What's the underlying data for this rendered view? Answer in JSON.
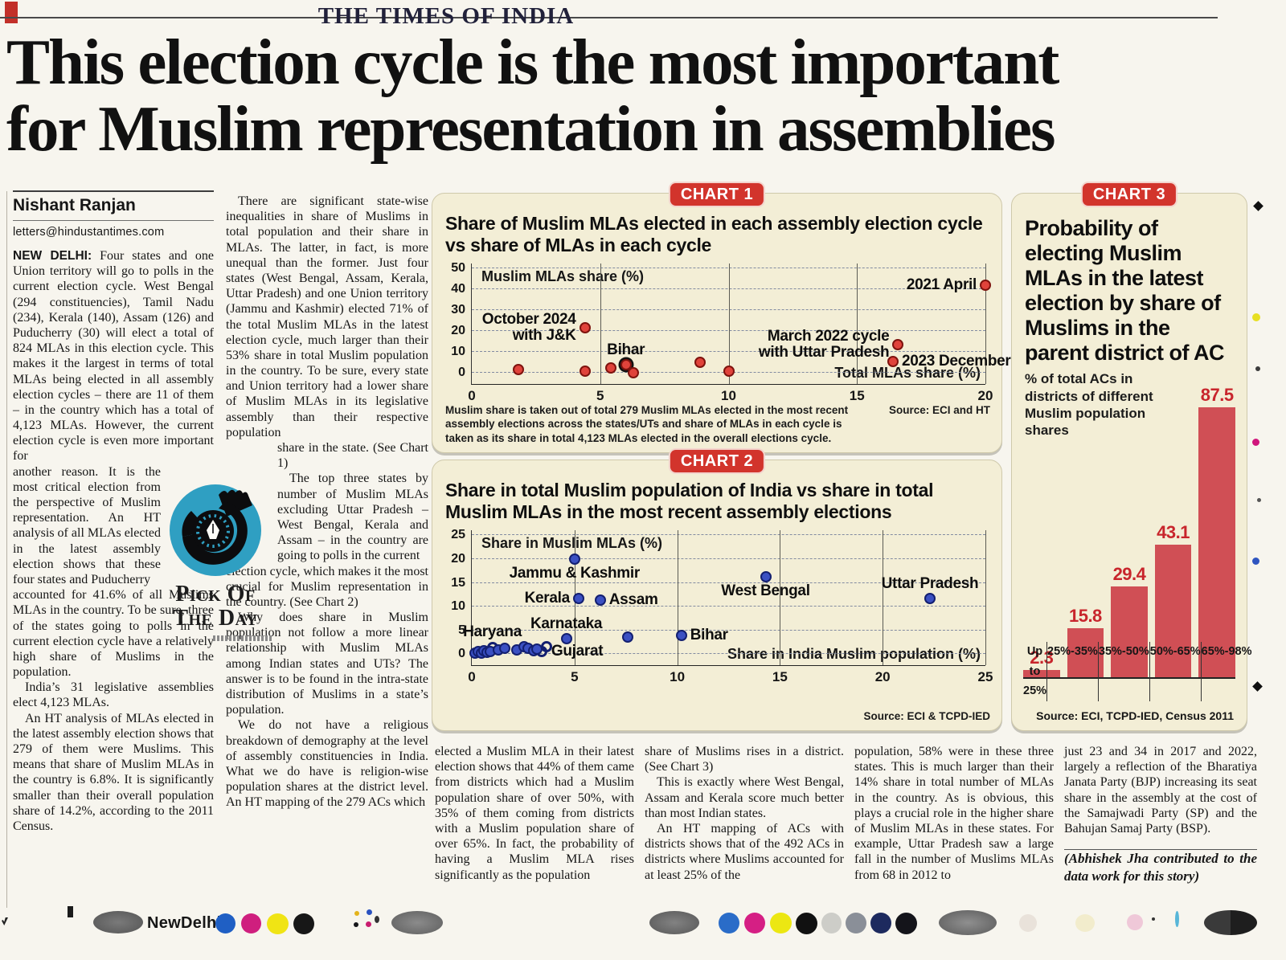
{
  "page": {
    "masthead": "THE TIMES OF INDIA",
    "headline_line1": "This election cycle is the most important",
    "headline_line2": "for Muslim representation in assemblies"
  },
  "byline": {
    "author": "Nishant Ranjan",
    "email": "letters@hindustantimes.com"
  },
  "article": {
    "dateline": "NEW DELHI:",
    "col1_intro": "Four states and one Union territory will go to polls in the current election cycle. West Bengal (294 constituencies), Tamil Nadu (234), Kerala (140), Assam (126) and Puducherry (30) will elect a total of 824 MLAs in this election cycle. This makes it the largest in terms of total MLAs being elected in all assembly election cycles – there are 11 of them – in the country which has a total of 4,123 MLAs. However, the current election cycle is even more important for",
    "col1_wrap": "another reason. It is the most critical election from the perspective of Muslim representation. An HT analysis of all MLAs elected in the latest assembly election shows that these four states and Puducherry",
    "col1_cont": "accounted for 41.6% of all Muslims MLAs in the country. To be sure, three of the states going to polls in the current election cycle have a relatively high share of Muslims in the population.",
    "col1_p2": "India’s 31 legislative assemblies elect 4,123 MLAs.",
    "col1_p3": "An HT analysis of MLAs elected in the latest assembly election shows that 279 of them were Muslims. This means that share of Muslim MLAs in the country is 6.8%. It is significantly smaller than their overall population share of 14.2%, according to the 2011 Census.",
    "col2_p1": "There are significant state-wise inequalities in share of Muslims in total population and their share in MLAs. The latter, in fact, is more unequal than the former. Just four states (West Bengal, Assam, Kerala, Uttar Pradesh) and one Union territory (Jammu and Kashmir) elected 71% of the total Muslim MLAs in the latest election cycle, much larger than their 53% share in total Muslim population in the country. To be sure, every state and Union territory had a lower share of Muslim MLAs in its legislative assembly than their respective population",
    "col2_wrap1": "share in the state. (See Chart 1)",
    "col2_wrap2": "The top three states by number of Muslim MLAs excluding Uttar Pradesh – West Bengal, Kerala and Assam – in the country are going to polls in the current",
    "col2_cont": "election cycle, which makes it the most crucial for Muslim representation in the country. (See Chart 2)",
    "col2_p3": "Why does share in Muslim population not follow a more linear relationship with Muslim MLAs among Indian states and UTs? The answer is to be found in the intra-state distribution of Muslims in a state’s population.",
    "col2_p4": "We do not have a religious breakdown of demography at the level of assembly constituencies in India. What we do have is religion-wise population shares at the district level. An HT mapping of the 279 ACs which",
    "bcol1_p1": "elected a Muslim MLA in their latest election shows that 44% of them came from districts which had a Muslim population share of over 50%, with 35% of them coming from districts with a Muslim population share of over 65%. In fact, the probability of having a Muslim MLA rises significantly as the population",
    "bcol2_p1": "share of Muslims rises in a district. (See Chart 3)",
    "bcol2_p2": "This is exactly where West Bengal, Assam and Kerala score much better than most Indian states.",
    "bcol2_p3": "An HT mapping of ACs with districts shows that of the 492 ACs in districts where Muslims accounted for at least 25% of the",
    "bcol3_p1": "population, 58% were in these three states. This is much larger than their 14% share in total number of MLAs in the country. As is obvious, this plays a crucial role in the higher share of Muslim MLAs in these states. For example, Uttar Pradesh saw a large fall in the number of Muslims MLAs from 68 in 2012 to",
    "bcol4_p1": "just 23 and 34 in 2017 and 2022, largely a reflection of the Bharatiya Janata Party (BJP) increasing its seat share in the assembly at the cost of the Samajwadi Party (SP) and the Bahujan Samaj Party (BSP).",
    "credit": "(Abhishek Jha contributed to the data work for this story)"
  },
  "pick_of_day": {
    "line1": "Pick Of",
    "line2": "The Day"
  },
  "footer": {
    "city": "NewDelhi"
  },
  "chart_data": [
    {
      "id": "chart1",
      "type": "scatter",
      "badge": "CHART 1",
      "title": "Share of Muslim MLAs elected in each assembly election cycle vs share of MLAs in each cycle",
      "ylabel": "Muslim MLAs share (%)",
      "xlabel": "Total MLAs share (%)",
      "xlim": [
        0,
        20
      ],
      "ylim": [
        0,
        50
      ],
      "xticks": [
        0,
        5,
        10,
        15,
        20
      ],
      "yticks": [
        0,
        10,
        20,
        30,
        40,
        50
      ],
      "grid": "dashed-horizontal solid-vertical",
      "legend": "none",
      "point_color": "#e0433b",
      "point_border": "#7e130e",
      "points": [
        {
          "x": 1.8,
          "y": 1.5
        },
        {
          "x": 4.4,
          "y": 21.5,
          "label": "October 2024\nwith J&K",
          "label_pos": "left"
        },
        {
          "x": 4.4,
          "y": 1.0
        },
        {
          "x": 5.4,
          "y": 2.5
        },
        {
          "x": 6.0,
          "y": 4.0,
          "label": "Bihar",
          "label_pos": "above",
          "ring": true
        },
        {
          "x": 6.3,
          "y": 0.3
        },
        {
          "x": 8.9,
          "y": 5.0
        },
        {
          "x": 10.0,
          "y": 1.0
        },
        {
          "x": 16.6,
          "y": 13.5,
          "label": "March 2022 cycle\nwith Uttar Pradesh",
          "label_pos": "left"
        },
        {
          "x": 16.4,
          "y": 5.5,
          "label": "2023 December",
          "label_pos": "right"
        },
        {
          "x": 20.0,
          "y": 42.0,
          "label": "2021 April",
          "label_pos": "left"
        }
      ],
      "footnote": "Muslim share is taken out of total 279 Muslim MLAs elected in the most recent assembly elections across the states/UTs and share of MLAs in each cycle is taken as its share in total 4,123 MLAs elected in the overall elections cycle.",
      "source": "Source: ECI and HT"
    },
    {
      "id": "chart2",
      "type": "scatter",
      "badge": "CHART 2",
      "title": "Share in total Muslim population of India vs share in total Muslim MLAs in the most recent assembly elections",
      "ylabel": "Share in Muslim MLAs (%)",
      "xlabel": "Share in India Muslim population (%)",
      "xlim": [
        0,
        25
      ],
      "ylim": [
        0,
        25
      ],
      "xticks": [
        0,
        5,
        10,
        15,
        20,
        25
      ],
      "yticks": [
        0,
        5,
        10,
        15,
        20,
        25
      ],
      "grid": "dashed-horizontal solid-vertical",
      "legend": "none",
      "point_color": "#3b50c2",
      "point_border": "#131f70",
      "points": [
        {
          "x": 5.0,
          "y": 20.0,
          "label": "Jammu & Kashmir",
          "label_pos": "below"
        },
        {
          "x": 14.3,
          "y": 16.3,
          "label": "West Bengal",
          "label_pos": "below"
        },
        {
          "x": 22.3,
          "y": 11.8,
          "label": "Uttar Pradesh",
          "label_pos": "above"
        },
        {
          "x": 5.2,
          "y": 11.8,
          "label": "Kerala",
          "label_pos": "left"
        },
        {
          "x": 6.25,
          "y": 11.3,
          "label": "Assam",
          "label_pos": "right"
        },
        {
          "x": 4.6,
          "y": 3.3,
          "label": "Karnataka",
          "label_pos": "above"
        },
        {
          "x": 10.2,
          "y": 3.9,
          "label": "Bihar",
          "label_pos": "right"
        },
        {
          "x": 7.6,
          "y": 3.6
        },
        {
          "x": 1.0,
          "y": 1.45,
          "label": "Haryana",
          "label_pos": "above",
          "open": true
        },
        {
          "x": 3.4,
          "y": 0.55,
          "label": "Gujarat",
          "label_pos": "right",
          "open": true
        },
        {
          "x": 0.15,
          "y": 0.2
        },
        {
          "x": 0.3,
          "y": 0.55
        },
        {
          "x": 0.45,
          "y": 0.15
        },
        {
          "x": 0.6,
          "y": 0.8
        },
        {
          "x": 0.75,
          "y": 0.35
        },
        {
          "x": 0.9,
          "y": 0.6
        },
        {
          "x": 1.3,
          "y": 0.9
        },
        {
          "x": 1.6,
          "y": 1.2
        },
        {
          "x": 2.2,
          "y": 0.85
        },
        {
          "x": 2.55,
          "y": 1.6
        },
        {
          "x": 2.75,
          "y": 1.25
        },
        {
          "x": 3.0,
          "y": 0.7
        },
        {
          "x": 3.15,
          "y": 1.1
        },
        {
          "x": 3.65,
          "y": 1.55,
          "open": true
        }
      ],
      "source": "Source: ECI & TCPD-IED"
    },
    {
      "id": "chart3",
      "type": "bar",
      "badge": "CHART 3",
      "title": "Probability of electing Muslim MLAs in the latest election by share of Muslims in the parent district of AC",
      "subtitle": "% of total ACs in districts of different Muslim population shares",
      "categories": [
        "Up to 25%",
        "25%-35%",
        "35%-50%",
        "50%-65%",
        "65%-98%"
      ],
      "values": [
        2.3,
        15.8,
        29.4,
        43.1,
        87.5
      ],
      "ylim": [
        0,
        87.5
      ],
      "bar_color": "#d04f55",
      "value_color": "#c8252c",
      "source": "Source: ECI, TCPD-IED, Census 2011"
    }
  ]
}
